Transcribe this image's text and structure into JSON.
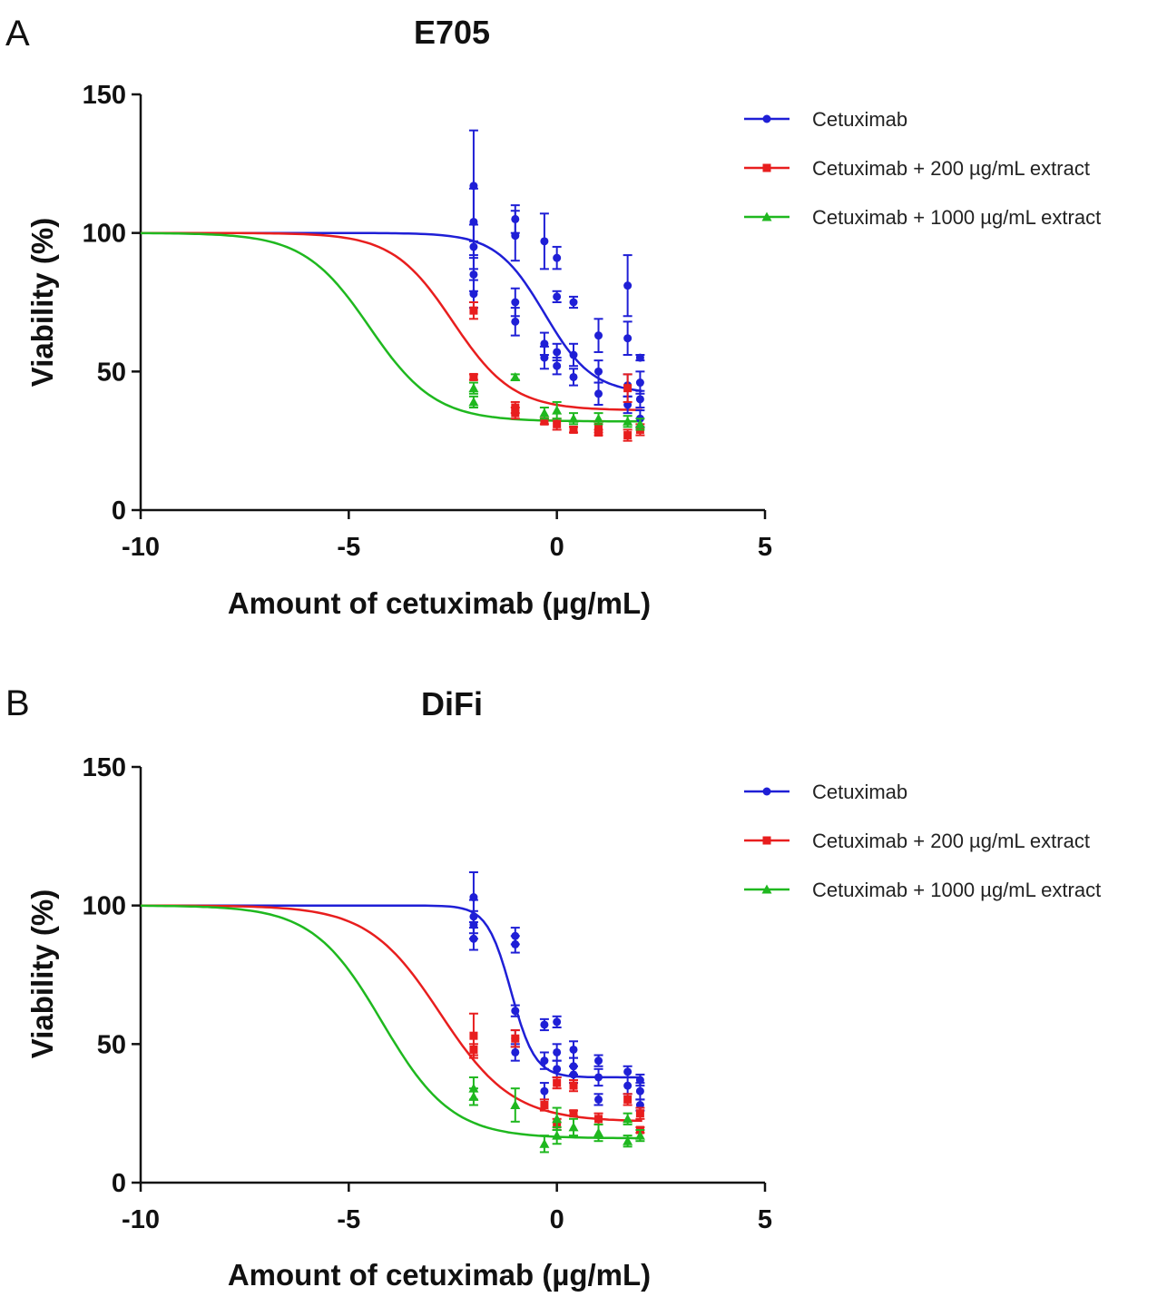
{
  "chart_data": [
    {
      "panel": "A",
      "type": "scatter",
      "title": "E705",
      "xlabel": "Amount of cetuximab (µg/mL)",
      "ylabel": "Viability (%)",
      "xlim": [
        -10,
        5
      ],
      "ylim": [
        0,
        150
      ],
      "xticks": [
        -10,
        -5,
        0,
        5
      ],
      "yticks": [
        0,
        50,
        100,
        150
      ],
      "grid": false,
      "legend_position": "top-right",
      "series": [
        {
          "name": "Cetuximab",
          "color": "#1f1fd6",
          "marker": "circle",
          "fit": {
            "top": 100,
            "bottom": 42,
            "logEC50": -0.3,
            "hill": 0.75
          },
          "points": [
            {
              "x": -2,
              "y": 117,
              "err": 20
            },
            {
              "x": -2,
              "y": 104,
              "err": 12
            },
            {
              "x": -2,
              "y": 95,
              "err": 8
            },
            {
              "x": -2,
              "y": 85,
              "err": 6
            },
            {
              "x": -2,
              "y": 78,
              "err": 5
            },
            {
              "x": -1,
              "y": 105,
              "err": 5
            },
            {
              "x": -1,
              "y": 99,
              "err": 9
            },
            {
              "x": -1,
              "y": 75,
              "err": 5
            },
            {
              "x": -1,
              "y": 68,
              "err": 5
            },
            {
              "x": -0.3,
              "y": 97,
              "err": 10
            },
            {
              "x": -0.3,
              "y": 60,
              "err": 4
            },
            {
              "x": -0.3,
              "y": 55,
              "err": 4
            },
            {
              "x": 0,
              "y": 91,
              "err": 4
            },
            {
              "x": 0,
              "y": 77,
              "err": 2
            },
            {
              "x": 0,
              "y": 57,
              "err": 3
            },
            {
              "x": 0,
              "y": 52,
              "err": 3
            },
            {
              "x": 0.4,
              "y": 75,
              "err": 2
            },
            {
              "x": 0.4,
              "y": 56,
              "err": 4
            },
            {
              "x": 0.4,
              "y": 48,
              "err": 3
            },
            {
              "x": 1,
              "y": 63,
              "err": 6
            },
            {
              "x": 1,
              "y": 50,
              "err": 4
            },
            {
              "x": 1,
              "y": 42,
              "err": 4
            },
            {
              "x": 1.7,
              "y": 81,
              "err": 11
            },
            {
              "x": 1.7,
              "y": 62,
              "err": 6
            },
            {
              "x": 1.7,
              "y": 45,
              "err": 4
            },
            {
              "x": 1.7,
              "y": 38,
              "err": 3
            },
            {
              "x": 2,
              "y": 55,
              "err": 1
            },
            {
              "x": 2,
              "y": 46,
              "err": 4
            },
            {
              "x": 2,
              "y": 40,
              "err": 3
            },
            {
              "x": 2,
              "y": 33,
              "err": 3
            }
          ]
        },
        {
          "name": "Cetuximab + 200  µg/mL  extract",
          "color": "#e81e1e",
          "marker": "square",
          "fit": {
            "top": 100,
            "bottom": 36,
            "logEC50": -2.5,
            "hill": 0.6
          },
          "points": [
            {
              "x": -2,
              "y": 72,
              "err": 3
            },
            {
              "x": -2,
              "y": 48,
              "err": 1
            },
            {
              "x": -1,
              "y": 37,
              "err": 2
            },
            {
              "x": -1,
              "y": 35,
              "err": 2
            },
            {
              "x": -0.3,
              "y": 32,
              "err": 1
            },
            {
              "x": 0,
              "y": 31,
              "err": 2
            },
            {
              "x": 0.4,
              "y": 29,
              "err": 1
            },
            {
              "x": 1,
              "y": 30,
              "err": 2
            },
            {
              "x": 1,
              "y": 28,
              "err": 1
            },
            {
              "x": 1.7,
              "y": 44,
              "err": 5
            },
            {
              "x": 1.7,
              "y": 27,
              "err": 2
            },
            {
              "x": 2,
              "y": 29,
              "err": 2
            }
          ]
        },
        {
          "name": "Cetuximab + 1000  µg/mL  extract",
          "color": "#1fb81f",
          "marker": "triangle",
          "fit": {
            "top": 100,
            "bottom": 32,
            "logEC50": -4.5,
            "hill": 0.55
          },
          "points": [
            {
              "x": -2,
              "y": 44,
              "err": 2
            },
            {
              "x": -2,
              "y": 39,
              "err": 2
            },
            {
              "x": -1,
              "y": 48,
              "err": 1
            },
            {
              "x": -0.3,
              "y": 35,
              "err": 2
            },
            {
              "x": 0,
              "y": 36,
              "err": 3
            },
            {
              "x": 0.4,
              "y": 33,
              "err": 2
            },
            {
              "x": 1,
              "y": 33,
              "err": 2
            },
            {
              "x": 1.7,
              "y": 32,
              "err": 2
            },
            {
              "x": 2,
              "y": 31,
              "err": 2
            }
          ]
        }
      ]
    },
    {
      "panel": "B",
      "type": "scatter",
      "title": "DiFi",
      "xlabel": "Amount of cetuximab (µg/mL)",
      "ylabel": "Viability (%)",
      "xlim": [
        -10,
        5
      ],
      "ylim": [
        0,
        150
      ],
      "xticks": [
        -10,
        -5,
        0,
        5
      ],
      "yticks": [
        0,
        50,
        100,
        150
      ],
      "grid": false,
      "legend_position": "top-right",
      "series": [
        {
          "name": "Cetuximab",
          "color": "#1f1fd6",
          "marker": "circle",
          "fit": {
            "top": 100,
            "bottom": 38,
            "logEC50": -1.1,
            "hill": 1.5
          },
          "points": [
            {
              "x": -2,
              "y": 103,
              "err": 9
            },
            {
              "x": -2,
              "y": 96,
              "err": 6
            },
            {
              "x": -2,
              "y": 93,
              "err": 5
            },
            {
              "x": -2,
              "y": 88,
              "err": 4
            },
            {
              "x": -1,
              "y": 89,
              "err": 3
            },
            {
              "x": -1,
              "y": 86,
              "err": 3
            },
            {
              "x": -1,
              "y": 62,
              "err": 2
            },
            {
              "x": -1,
              "y": 52,
              "err": 3
            },
            {
              "x": -1,
              "y": 47,
              "err": 3
            },
            {
              "x": -0.3,
              "y": 57,
              "err": 2
            },
            {
              "x": -0.3,
              "y": 44,
              "err": 3
            },
            {
              "x": -0.3,
              "y": 33,
              "err": 3
            },
            {
              "x": 0,
              "y": 58,
              "err": 2
            },
            {
              "x": 0,
              "y": 47,
              "err": 3
            },
            {
              "x": 0,
              "y": 41,
              "err": 3
            },
            {
              "x": 0.4,
              "y": 48,
              "err": 3
            },
            {
              "x": 0.4,
              "y": 42,
              "err": 3
            },
            {
              "x": 0.4,
              "y": 39,
              "err": 3
            },
            {
              "x": 1,
              "y": 44,
              "err": 2
            },
            {
              "x": 1,
              "y": 38,
              "err": 3
            },
            {
              "x": 1,
              "y": 30,
              "err": 2
            },
            {
              "x": 1.7,
              "y": 40,
              "err": 2
            },
            {
              "x": 1.7,
              "y": 35,
              "err": 3
            },
            {
              "x": 2,
              "y": 37,
              "err": 2
            },
            {
              "x": 2,
              "y": 33,
              "err": 3
            },
            {
              "x": 2,
              "y": 28,
              "err": 2
            }
          ]
        },
        {
          "name": "Cetuximab + 200  µg/mL  extract",
          "color": "#e81e1e",
          "marker": "square",
          "fit": {
            "top": 100,
            "bottom": 22,
            "logEC50": -2.8,
            "hill": 0.5
          },
          "points": [
            {
              "x": -2,
              "y": 53,
              "err": 8
            },
            {
              "x": -2,
              "y": 48,
              "err": 2
            },
            {
              "x": -1,
              "y": 52,
              "err": 3
            },
            {
              "x": -0.3,
              "y": 28,
              "err": 2
            },
            {
              "x": 0,
              "y": 36,
              "err": 2
            },
            {
              "x": 0,
              "y": 21,
              "err": 2
            },
            {
              "x": 0.4,
              "y": 35,
              "err": 2
            },
            {
              "x": 0.4,
              "y": 25,
              "err": 1
            },
            {
              "x": 1,
              "y": 23,
              "err": 2
            },
            {
              "x": 1.7,
              "y": 30,
              "err": 2
            },
            {
              "x": 2,
              "y": 25,
              "err": 2
            },
            {
              "x": 2,
              "y": 19,
              "err": 1
            }
          ]
        },
        {
          "name": "Cetuximab + 1000  µg/mL  extract",
          "color": "#1fb81f",
          "marker": "triangle",
          "fit": {
            "top": 100,
            "bottom": 16,
            "logEC50": -4.2,
            "hill": 0.52
          },
          "points": [
            {
              "x": -2,
              "y": 34,
              "err": 4
            },
            {
              "x": -2,
              "y": 31,
              "err": 3
            },
            {
              "x": -1,
              "y": 28,
              "err": 6
            },
            {
              "x": -0.3,
              "y": 14,
              "err": 3
            },
            {
              "x": 0,
              "y": 23,
              "err": 4
            },
            {
              "x": 0,
              "y": 17,
              "err": 3
            },
            {
              "x": 0.4,
              "y": 20,
              "err": 3
            },
            {
              "x": 1,
              "y": 18,
              "err": 3
            },
            {
              "x": 1.7,
              "y": 23,
              "err": 2
            },
            {
              "x": 1.7,
              "y": 15,
              "err": 2
            },
            {
              "x": 2,
              "y": 17,
              "err": 2
            }
          ]
        }
      ]
    }
  ]
}
